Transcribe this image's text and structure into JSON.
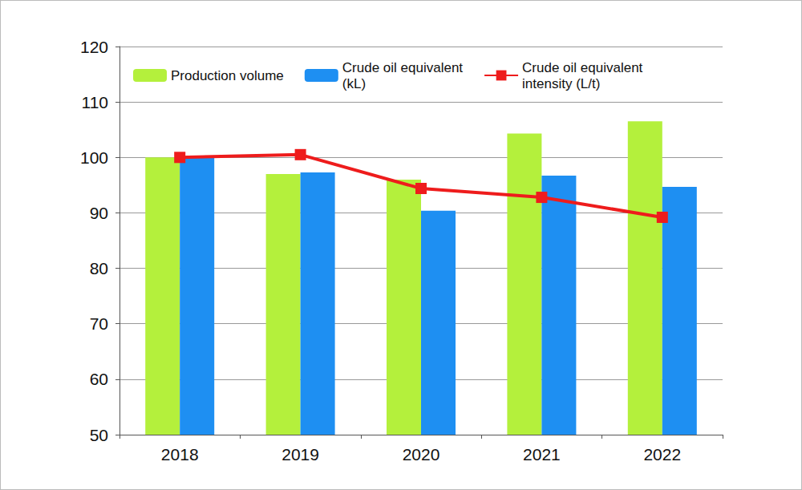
{
  "chart_data": {
    "type": "bar",
    "categories": [
      "2018",
      "2019",
      "2020",
      "2021",
      "2022"
    ],
    "series": [
      {
        "name": "Production volume",
        "color": "#b4f03c",
        "type": "bar",
        "values": [
          100,
          97,
          96,
          104.3,
          106.5
        ]
      },
      {
        "name": "Crude oil equivalent\n(kL)",
        "color": "#1e8ff2",
        "type": "bar",
        "values": [
          100,
          97.3,
          90.4,
          96.7,
          94.7
        ]
      },
      {
        "name": "Crude oil equivalent\nintensity (L/t)",
        "color": "#ee1c1c",
        "type": "line",
        "marker": "square",
        "values": [
          100,
          100.5,
          94.4,
          92.8,
          89.2
        ]
      }
    ],
    "ylim": [
      50,
      120
    ],
    "yticks": [
      50,
      60,
      70,
      80,
      90,
      100,
      110,
      120
    ],
    "grid": true,
    "legend": "top"
  }
}
